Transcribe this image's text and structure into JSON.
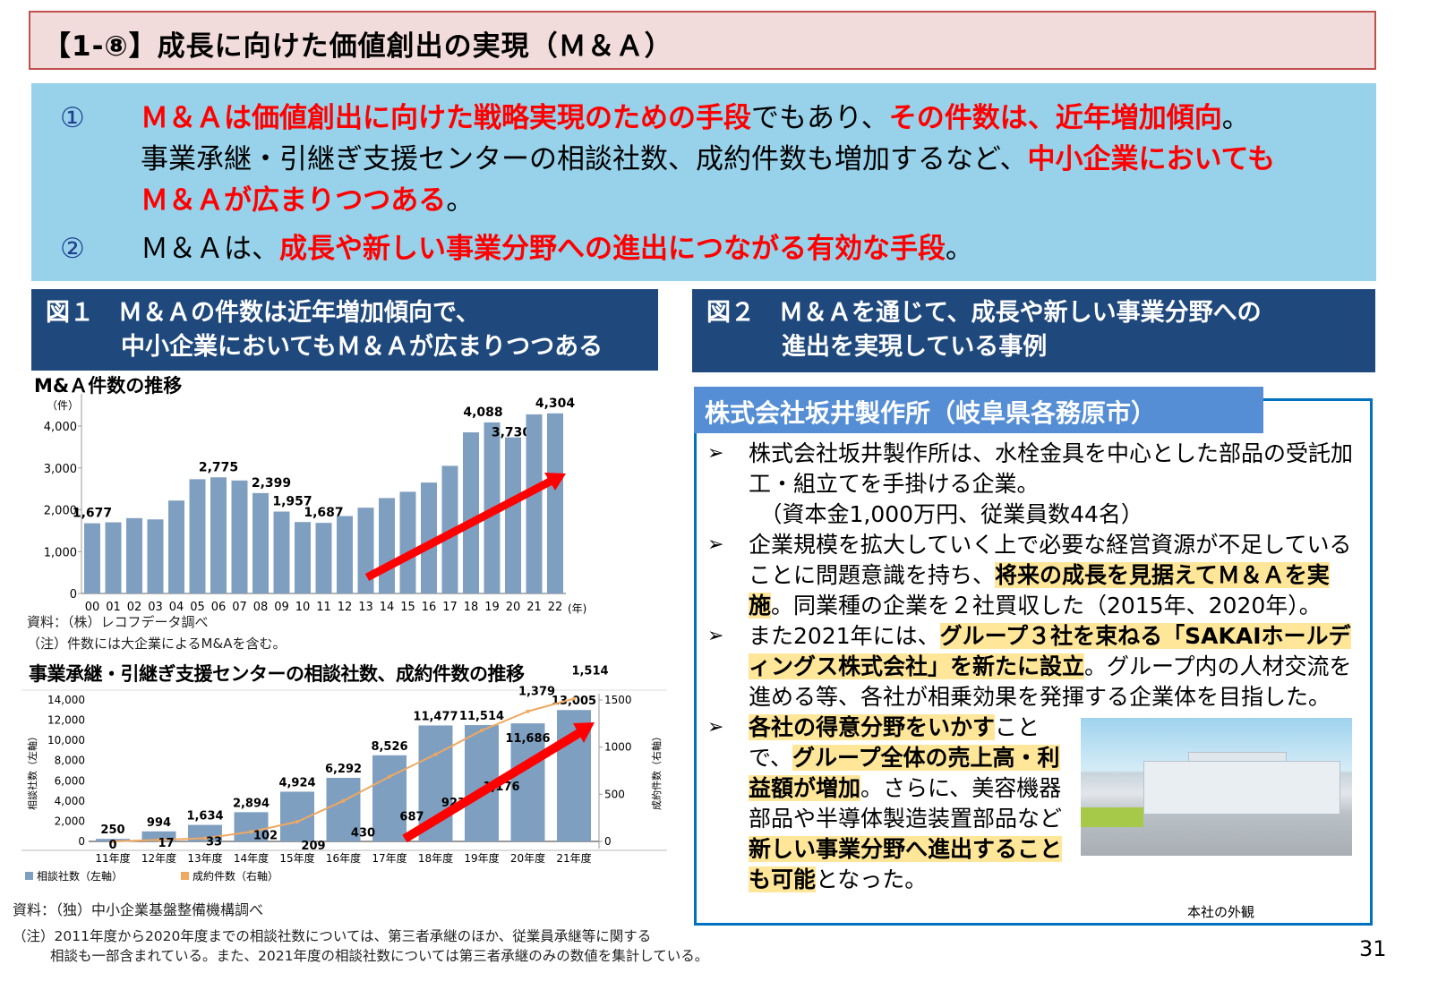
{
  "title": "【1-⑧】成長に向けた価値創出の実現（Ｍ＆Ａ）",
  "summary": {
    "items": [
      {
        "num": "①",
        "lines": [
          [
            {
              "t": "Ｍ＆Ａは価値創出に向けた戦略実現のための手段",
              "red": true
            },
            {
              "t": "でもあり、"
            },
            {
              "t": "その件数は、近年増加傾向",
              "red": true
            },
            {
              "t": "。"
            }
          ],
          [
            {
              "t": "事業承継・引継ぎ支援センターの相談社数、成約件数も増加するなど、"
            },
            {
              "t": "中小企業においても",
              "red": true
            }
          ],
          [
            {
              "t": "Ｍ＆Ａが広まりつつある",
              "red": true
            },
            {
              "t": "。"
            }
          ]
        ]
      },
      {
        "num": "②",
        "lines": [
          [
            {
              "t": "Ｍ＆Ａは、"
            },
            {
              "t": "成長や新しい事業分野への進出につながる有効な手段",
              "red": true
            },
            {
              "t": "。"
            }
          ]
        ]
      }
    ]
  },
  "fig1": {
    "line1": "図１　Ｍ＆Ａの件数は近年増加傾向で、",
    "line2": "中小企業においてもＭ＆Ａが広まりつつある"
  },
  "fig2": {
    "line1": "図２　Ｍ＆Ａを通じて、成長や新しい事業分野への",
    "line2": "進出を実現している事例"
  },
  "chart1_notes": {
    "source": "資料：（株）レコフデータ調べ",
    "note": "（注）件数には大企業によるM&Aを含む。"
  },
  "chart2_notes": {
    "source": "資料：（独）中小企業基盤整備機構調べ",
    "note1": "（注）2011年度から2020年度までの相談社数については、第三者承継のほか、従業員承継等に関する",
    "note2": "相談も一部含まれている。また、2021年度の相談社数については第三者承継のみの数値を集計している。"
  },
  "chart_data": [
    {
      "type": "bar",
      "title": "M&Ａ件数の推移",
      "ylabel": "（件）",
      "xunit": "(年)",
      "categories": [
        "00",
        "01",
        "02",
        "03",
        "04",
        "05",
        "06",
        "07",
        "08",
        "09",
        "10",
        "11",
        "12",
        "13",
        "14",
        "15",
        "16",
        "17",
        "18",
        "19",
        "20",
        "21",
        "22"
      ],
      "values": [
        1677,
        1700,
        1800,
        1770,
        2220,
        2730,
        2775,
        2700,
        2399,
        1957,
        1707,
        1687,
        1850,
        2050,
        2280,
        2430,
        2650,
        3050,
        3850,
        4088,
        3730,
        4280,
        4304
      ],
      "data_labels": {
        "00": "1,677",
        "06": "2,775",
        "08": "2,399",
        "09": "1,957",
        "11": "1,687",
        "19": "4,088",
        "20": "3,730",
        "22": "4,304"
      },
      "yticks": [
        "0",
        "1,000",
        "2,000",
        "3,000",
        "4,000"
      ],
      "ylim": [
        0,
        4500
      ],
      "color": "#7f9fc1",
      "grid": false,
      "annotation": "red upward trend arrow from 13 to 22"
    },
    {
      "type": "bar+line",
      "title": "事業承継・引継ぎ支援センターの相談社数、成約件数の推移",
      "categories": [
        "11年度",
        "12年度",
        "13年度",
        "14年度",
        "15年度",
        "16年度",
        "17年度",
        "18年度",
        "19年度",
        "20年度",
        "21年度"
      ],
      "series": [
        {
          "name": "相談社数（左軸）",
          "type": "bar",
          "axis": "left",
          "color": "#7f9fc1",
          "values": [
            250,
            994,
            1634,
            2894,
            4924,
            6292,
            8526,
            11477,
            11514,
            11686,
            13005
          ],
          "labels": [
            "250",
            "994",
            "1,634",
            "2,894",
            "4,924",
            "6,292",
            "8,526",
            "11,477",
            "11,514",
            "11,686",
            "13,005"
          ]
        },
        {
          "name": "成約件数（右軸）",
          "type": "line",
          "axis": "right",
          "color": "#f0a860",
          "values": [
            0,
            17,
            33,
            102,
            209,
            430,
            687,
            923,
            1176,
            1379,
            1514
          ],
          "labels": [
            "0",
            "17",
            "33",
            "102",
            "209",
            "430",
            "687",
            "923",
            "1,176",
            "1,379",
            "1,514"
          ]
        }
      ],
      "ylabel_left": "相談社数（左軸）",
      "ylabel_right": "成約件数（右軸）",
      "yticks_left": [
        "0",
        "2,000",
        "4,000",
        "6,000",
        "8,000",
        "10,000",
        "12,000",
        "14,000"
      ],
      "yticks_right": [
        "0",
        "500",
        "1000",
        "1500"
      ],
      "ylim_left": [
        0,
        14000
      ],
      "ylim_right": [
        0,
        1500
      ],
      "legend": "bottom-left",
      "grid": false
    }
  ],
  "case": {
    "header": "株式会社坂井製作所（岐阜県各務原市）",
    "bullet_icon": "arrowhead-bullet-icon",
    "bullets": [
      [
        {
          "t": "株式会社坂井製作所は、水栓金具を中心とした部品の受託加工・組立てを手掛ける企業。"
        },
        {
          "t": "　（資本金1,000万円、従業員数44名）",
          "br": true
        }
      ],
      [
        {
          "t": "企業規模を拡大していく上で必要な経営資源が不足していることに問題意識を持ち、"
        },
        {
          "t": "将来の成長を見据えてＭ＆Ａを実施",
          "hl": true
        },
        {
          "t": "。同業種の企業を２社買収した（2015年、2020年）。"
        }
      ],
      [
        {
          "t": "また2021年には、"
        },
        {
          "t": "グループ３社を束ねる「SAKAIホールディングス株式会社」を新たに設立",
          "hl": true
        },
        {
          "t": "。グループ内の人材交流を進める等、各社が相乗効果を発揮する企業体を目指した。"
        }
      ],
      [
        {
          "t": "各社の得意分野をいかす",
          "hl": true
        },
        {
          "t": "ことで、"
        },
        {
          "t": "グループ全体の売上高・利益額が増加",
          "hl": true
        },
        {
          "t": "。さらに、美容機器部品や半導体製造装置部品など"
        },
        {
          "t": "新しい事業分野へ進出することも可能",
          "hl": true
        },
        {
          "t": "となった。"
        }
      ]
    ],
    "photo_caption": "本社の外観"
  },
  "page_number": "31"
}
